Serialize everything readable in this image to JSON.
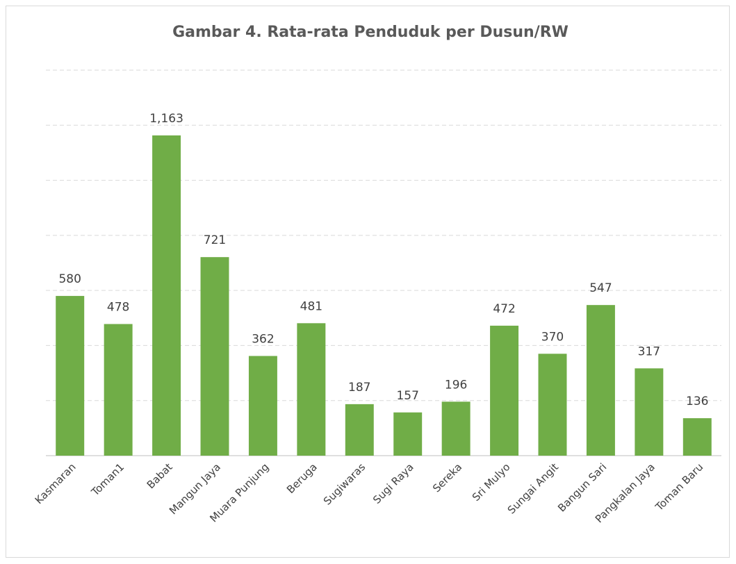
{
  "chart_data": {
    "type": "bar",
    "title": "Gambar 4. Rata-rata Penduduk per Dusun/RW",
    "categories": [
      "Kasmaran",
      "Toman1",
      "Babat",
      "Mangun Jaya",
      "Muara Punjung",
      "Beruga",
      "Sugiwaras",
      "Sugi Raya",
      "Sereka",
      "Sri Mulyo",
      "Sungai Angit",
      "Bangun Sari",
      "Pangkalan Jaya",
      "Toman Baru"
    ],
    "values": [
      580,
      478,
      1163,
      721,
      362,
      481,
      187,
      157,
      196,
      472,
      370,
      547,
      317,
      136
    ],
    "value_labels": [
      "580",
      "478",
      "1,163",
      "721",
      "362",
      "481",
      "187",
      "157",
      "196",
      "472",
      "370",
      "547",
      "317",
      "136"
    ],
    "color": "#70ad47",
    "ylim": [
      0,
      1400
    ],
    "yticks": [
      0,
      200,
      400,
      600,
      800,
      1000,
      1200,
      1400
    ],
    "grid": true
  }
}
